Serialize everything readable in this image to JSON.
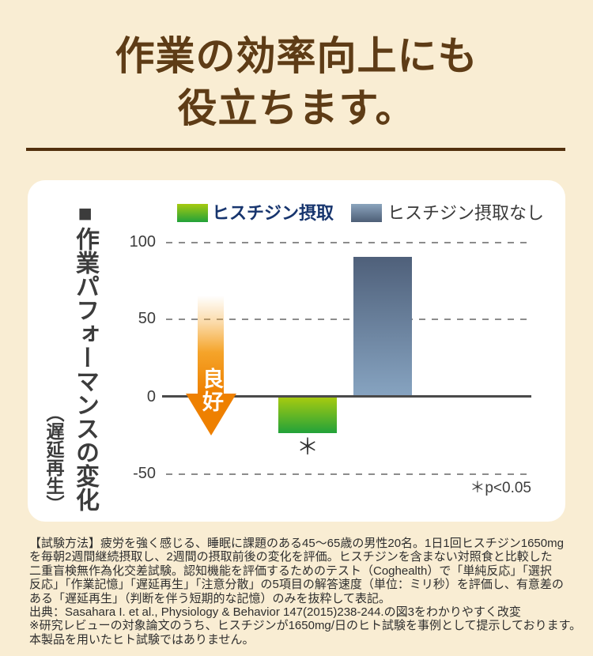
{
  "header": {
    "title_line1": "作業の効率向上にも",
    "title_line2": "役立ちます。",
    "title_color": "#5e3c16",
    "divider_color": "#53300d",
    "background": "#f9edd3"
  },
  "chart": {
    "panel_background": "#ffffff",
    "axis_title_main": "■作業パフォーマンスの変化",
    "axis_title_sub": "（遅延再生）",
    "yticks": [
      "100",
      "50",
      "0",
      "-50"
    ],
    "legend": [
      {
        "label": "ヒスチジン摂取",
        "label_color": "#17356e",
        "swatch": {
          "top": "#a6ca10",
          "bottom": "#22a23a"
        }
      },
      {
        "label": "ヒスチジン摂取なし",
        "label_color": "#3a3a3a",
        "swatch": {
          "top": "#8ba4bd",
          "bottom": "#4d5e76"
        }
      }
    ],
    "good_arrow_label": "良好",
    "arrow_color": "#ee8000",
    "significance_star": "＊",
    "significance_note": "＊p<0.05"
  },
  "chart_data": {
    "type": "bar",
    "title": "作業パフォーマンスの変化（遅延再生）",
    "categories": [
      "ヒスチジン摂取",
      "ヒスチジン摂取なし"
    ],
    "values": [
      -23,
      90
    ],
    "ylim": [
      -50,
      100
    ],
    "yticks": [
      100,
      50,
      0,
      -50
    ],
    "grid": "horizontal-dashed",
    "legend_position": "top",
    "bar_gradients": [
      {
        "top": "#a6ca10",
        "bottom": "#22a23a"
      },
      {
        "top": "#4f607a",
        "bottom": "#86a3c0"
      }
    ],
    "annotations": [
      {
        "text": "良好",
        "position": "downward-arrow-left-of-bars"
      },
      {
        "text": "＊",
        "position": "below-histidine-bar"
      },
      {
        "text": "＊p<0.05",
        "position": "bottom-right"
      }
    ]
  },
  "footer": {
    "lines": [
      "【試験方法】疲労を強く感じる、睡眠に課題のある45〜65歳の男性20名。1日1回ヒスチジン1650mg",
      "を毎朝2週間継続摂取し、2週間の摂取前後の変化を評価。ヒスチジンを含まない対照食と比較した",
      "二重盲検無作為化交差試験。認知機能を評価するためのテスト（Coghealth）で「単純反応」「選択",
      "反応」「作業記憶」「遅延再生」「注意分散」の5項目の解答速度（単位：ミリ秒）を評価し、有意差の",
      "ある「遅延再生」（判断を伴う短期的な記憶）のみを抜粋して表記。",
      "出典：Sasahara I. et al., Physiology & Behavior 147(2015)238-244.の図3をわかりやすく改変",
      "※研究レビューの対象論文のうち、ヒスチジンが1650mg/日のヒト試験を事例として提示しております。",
      "本製品を用いたヒト試験ではありません。"
    ]
  }
}
